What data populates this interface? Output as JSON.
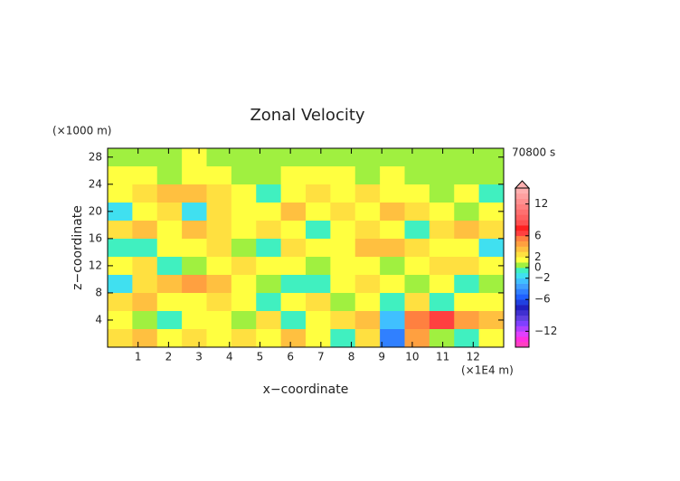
{
  "chart_data": {
    "type": "heatmap",
    "title": "Zonal Velocity",
    "x_label": "x−coordinate",
    "y_label": "z−coordinate",
    "x_unit": "(×1E4 m)",
    "y_unit": "(×1000 m)",
    "time_label": "70800 s",
    "xlim": [
      0,
      13
    ],
    "ylim": [
      0,
      29.3
    ],
    "xticks": [
      1,
      2,
      3,
      4,
      5,
      6,
      7,
      8,
      9,
      10,
      11,
      12
    ],
    "yticks": [
      4,
      8,
      12,
      16,
      20,
      24,
      28
    ],
    "z": [
      [
        0,
        0,
        0,
        1,
        0,
        0,
        0,
        0,
        0,
        0,
        0,
        0,
        0,
        0,
        0,
        0
      ],
      [
        1,
        1,
        0,
        1,
        1,
        0,
        0,
        1,
        1,
        1,
        0,
        1,
        0,
        0,
        0,
        0
      ],
      [
        1,
        2,
        3,
        3,
        2,
        1,
        -1,
        1,
        2,
        1,
        2,
        1,
        1,
        0,
        1,
        -1
      ],
      [
        -2,
        1,
        2,
        -2,
        2,
        1,
        1,
        3,
        1,
        2,
        1,
        3,
        2,
        1,
        0,
        1
      ],
      [
        2,
        3,
        1,
        3,
        2,
        1,
        2,
        1,
        -1,
        1,
        2,
        1,
        -1,
        2,
        3,
        2
      ],
      [
        -1,
        -1,
        1,
        1,
        2,
        0,
        -1,
        2,
        1,
        1,
        3,
        3,
        2,
        1,
        1,
        -2
      ],
      [
        1,
        2,
        -1,
        0,
        1,
        2,
        1,
        1,
        0,
        1,
        1,
        0,
        1,
        2,
        2,
        1
      ],
      [
        -2,
        2,
        3,
        4,
        3,
        1,
        0,
        -1,
        -1,
        1,
        2,
        1,
        0,
        1,
        -1,
        0
      ],
      [
        2,
        3,
        1,
        1,
        2,
        1,
        -1,
        1,
        2,
        0,
        1,
        -1,
        2,
        -1,
        1,
        1
      ],
      [
        1,
        0,
        -1,
        1,
        1,
        0,
        2,
        -1,
        1,
        2,
        3,
        -3,
        5,
        6,
        4,
        3
      ],
      [
        2,
        3,
        1,
        2,
        1,
        2,
        1,
        3,
        1,
        -1,
        2,
        -5,
        4,
        0,
        -1,
        1
      ]
    ],
    "colorbar": {
      "lim": [
        -15,
        15
      ],
      "ticks": [
        {
          "value": -12,
          "label": "−12"
        },
        {
          "value": -6,
          "label": "−6"
        },
        {
          "value": -2,
          "label": "−2"
        },
        0,
        2,
        6,
        12
      ],
      "colors": [
        "#ff40c0",
        "#ff30e0",
        "#e040ff",
        "#b040ff",
        "#8040ff",
        "#6040e0",
        "#4030d0",
        "#2020c0",
        "#2040e0",
        "#2060ff",
        "#3080ff",
        "#40a0ff",
        "#40c0ff",
        "#40e0f0",
        "#40f0c0",
        "#a0f040",
        "#ffff40",
        "#ffe040",
        "#ffc040",
        "#ffa040",
        "#ff8040",
        "#ff4040",
        "#ff2020",
        "#ff5050",
        "#ff6060",
        "#ff7070",
        "#ff8080",
        "#ff9090",
        "#ffa0a0",
        "#ffb0b0"
      ]
    }
  }
}
